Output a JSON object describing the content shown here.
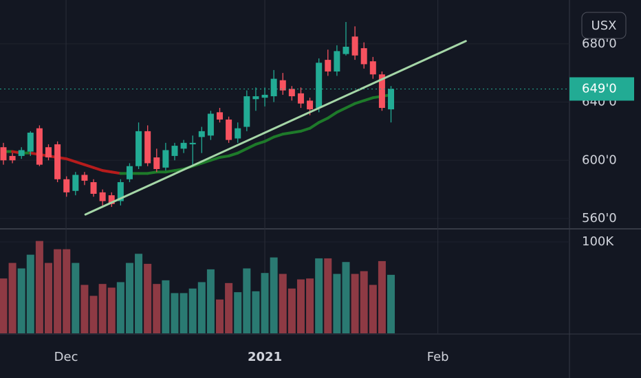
{
  "chart_data": {
    "type": "candlestick",
    "currency": "USX",
    "categories": [
      null,
      null,
      null,
      null,
      null,
      null,
      null,
      null,
      null,
      null,
      null,
      null,
      null,
      null,
      null,
      null,
      null,
      null,
      null,
      null,
      null,
      null,
      null,
      null,
      null,
      null,
      null,
      null,
      null,
      null,
      null,
      null,
      null,
      null,
      null,
      null,
      null,
      null,
      null,
      null,
      null,
      null,
      null,
      null
    ],
    "open": [
      609,
      603,
      603,
      606,
      622,
      609,
      611,
      587,
      579,
      590,
      585,
      578,
      576,
      572,
      587,
      596,
      620,
      602,
      595,
      603,
      608,
      611,
      616,
      617,
      633,
      628,
      615,
      623,
      642,
      643,
      644,
      655,
      649,
      646,
      641,
      636,
      669,
      661,
      673,
      685,
      677,
      668,
      659,
      635
    ],
    "high": [
      612,
      605,
      609,
      620,
      624,
      611,
      613,
      589,
      592,
      592,
      587,
      580,
      578,
      587,
      598,
      626,
      624,
      608,
      612,
      612,
      614,
      617,
      623,
      634,
      636,
      630,
      626,
      648,
      650,
      650,
      662,
      660,
      651,
      650,
      643,
      670,
      676,
      679,
      695,
      692,
      681,
      671,
      661,
      651
    ],
    "low": [
      597,
      598,
      601,
      603,
      596,
      600,
      585,
      575,
      576,
      583,
      575,
      569,
      568,
      569,
      585,
      594,
      596,
      592,
      593,
      600,
      605,
      597,
      605,
      614,
      626,
      612,
      612,
      620,
      634,
      637,
      640,
      645,
      641,
      636,
      631,
      633,
      658,
      658,
      672,
      669,
      663,
      656,
      634,
      626
    ],
    "close": [
      600,
      600,
      607,
      619,
      597,
      602,
      587,
      578,
      590,
      586,
      577,
      572,
      570,
      585,
      596,
      620,
      598,
      594,
      607,
      610,
      612,
      612,
      620,
      632,
      628,
      614,
      622,
      644,
      644,
      645,
      656,
      648,
      644,
      639,
      635,
      667,
      661,
      675,
      678,
      672,
      666,
      659,
      636,
      649
    ],
    "up_color": "#22ab94",
    "down_color": "#f7525f",
    "ylim": [
      553.4,
      710.1
    ],
    "yticks": [
      {
        "value": 560,
        "label": "560'0"
      },
      {
        "value": 600,
        "label": "600'0"
      },
      {
        "value": 640,
        "label": "640'0"
      },
      {
        "value": 680,
        "label": "680'0"
      }
    ],
    "xlim": [
      -0.38,
      62.8
    ],
    "xticks": [
      {
        "value": 6.95,
        "label": "Dec"
      },
      {
        "value": 29.0,
        "label": "2021"
      },
      {
        "value": 48.2,
        "label": "Feb"
      }
    ],
    "last_price": {
      "value": 649,
      "label": "649'0"
    },
    "volume": {
      "values": [
        60000,
        77000,
        71000,
        86000,
        101000,
        77000,
        92000,
        92000,
        77000,
        53000,
        41000,
        54000,
        50000,
        56000,
        77000,
        87000,
        76000,
        54000,
        58000,
        44000,
        44000,
        49000,
        56000,
        70000,
        37000,
        55000,
        45000,
        71000,
        46000,
        66000,
        83000,
        65000,
        49000,
        59000,
        60000,
        82000,
        82000,
        65000,
        78000,
        65000,
        68000,
        53000,
        79000,
        64000
      ],
      "up_color": "#2a7a72",
      "down_color": "#8e3a44",
      "ylim": [
        0,
        109000
      ],
      "yticks": [
        {
          "value": 100000,
          "label": "100K"
        }
      ]
    },
    "moving_average": {
      "values": [
        606,
        606,
        605,
        605,
        604,
        603,
        602,
        601,
        599,
        597,
        595,
        593,
        592,
        591,
        591,
        591,
        591,
        592,
        592,
        593,
        594,
        596,
        598,
        600,
        602,
        603,
        605,
        608,
        611,
        613,
        616,
        618,
        619,
        620,
        622,
        626,
        629,
        633,
        636,
        639,
        641,
        643,
        644,
        645
      ],
      "up_color": "#1e7a2a",
      "down_color": "#b71c1c"
    },
    "trendline": {
      "x": [
        9.1,
        51.3
      ],
      "values": [
        562.8,
        681.9
      ],
      "color": "#a5d6a7"
    }
  }
}
